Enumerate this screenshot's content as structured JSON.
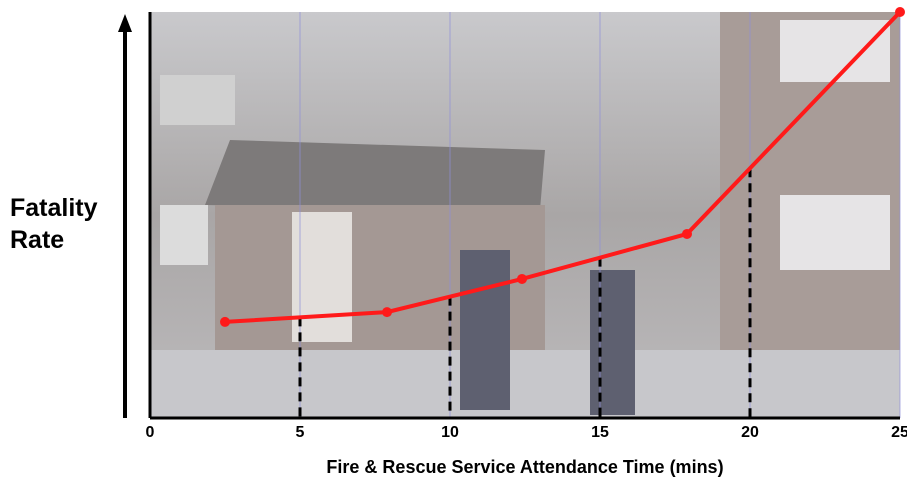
{
  "chart_data": {
    "type": "line",
    "x_label": "Fire & Rescue Service Attendance Time (mins)",
    "y_label": "Fatality Rate",
    "x": [
      2.5,
      7.9,
      12.4,
      17.9,
      25
    ],
    "series": [
      {
        "name": "Fatality Rate",
        "color": "#ff1a1a",
        "values": [
          2.84,
          3.13,
          4.11,
          5.44,
          12.0
        ]
      }
    ],
    "xlim": [
      0,
      25
    ],
    "xticks": [
      0,
      5,
      10,
      15,
      20,
      25
    ],
    "ylim": [
      0,
      12
    ],
    "grid": true
  }
}
